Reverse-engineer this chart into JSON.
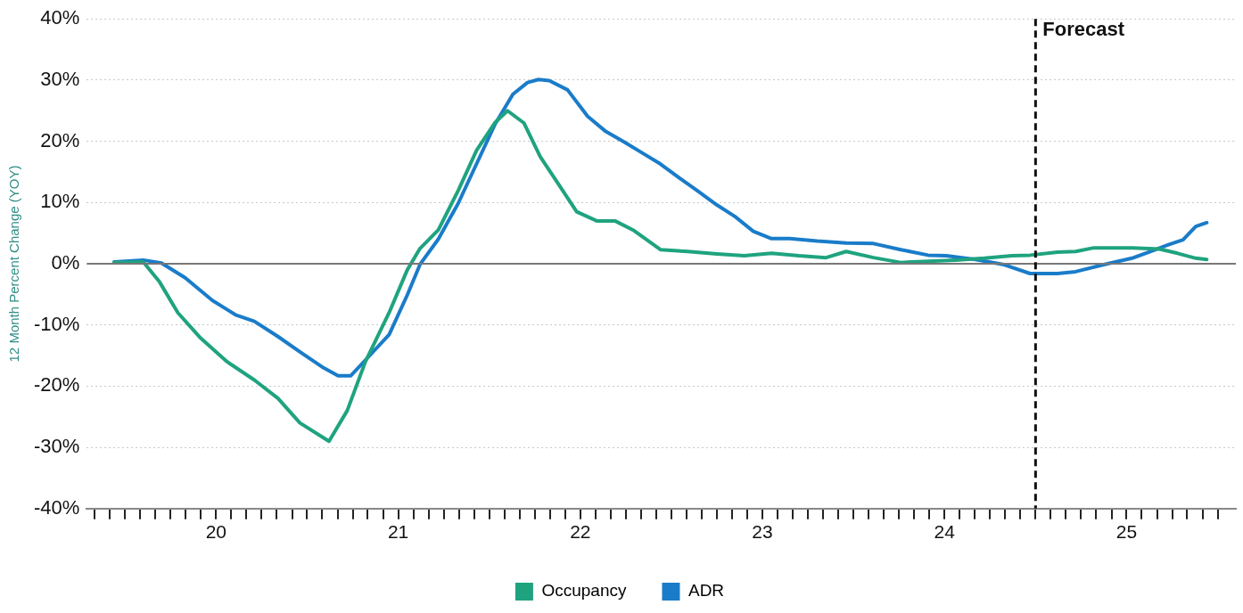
{
  "chart_data": {
    "type": "line",
    "ylabel": "12 Month Percent Change (YOY)",
    "ylim": [
      -40,
      40
    ],
    "yticks": [
      {
        "value": -40,
        "label": "-40%"
      },
      {
        "value": -30,
        "label": "-30%"
      },
      {
        "value": -20,
        "label": "-20%"
      },
      {
        "value": -10,
        "label": "-10%"
      },
      {
        "value": 0,
        "label": "0%"
      },
      {
        "value": 10,
        "label": "10%"
      },
      {
        "value": 20,
        "label": "20%"
      },
      {
        "value": 30,
        "label": "30%"
      },
      {
        "value": 40,
        "label": "40%"
      }
    ],
    "xlim": [
      19.29,
      25.6
    ],
    "xticks": [
      {
        "value": 19.333,
        "label": null
      },
      {
        "value": 19.417,
        "label": null
      },
      {
        "value": 19.5,
        "label": null
      },
      {
        "value": 19.583,
        "label": null
      },
      {
        "value": 19.667,
        "label": null
      },
      {
        "value": 19.75,
        "label": null
      },
      {
        "value": 19.833,
        "label": null
      },
      {
        "value": 19.917,
        "label": null
      },
      20,
      {
        "value": 20.083,
        "label": null
      },
      {
        "value": 20.167,
        "label": null
      },
      {
        "value": 20.25,
        "label": null
      },
      {
        "value": 20.333,
        "label": null
      },
      {
        "value": 20.417,
        "label": null
      },
      {
        "value": 20.5,
        "label": null
      },
      {
        "value": 20.583,
        "label": null
      },
      {
        "value": 20.667,
        "label": null
      },
      {
        "value": 20.75,
        "label": null
      },
      {
        "value": 20.833,
        "label": null
      },
      {
        "value": 20.917,
        "label": null
      },
      21,
      {
        "value": 21.083,
        "label": null
      },
      {
        "value": 21.167,
        "label": null
      },
      {
        "value": 21.25,
        "label": null
      },
      {
        "value": 21.333,
        "label": null
      },
      {
        "value": 21.417,
        "label": null
      },
      {
        "value": 21.5,
        "label": null
      },
      {
        "value": 21.583,
        "label": null
      },
      {
        "value": 21.667,
        "label": null
      },
      {
        "value": 21.75,
        "label": null
      },
      {
        "value": 21.833,
        "label": null
      },
      {
        "value": 21.917,
        "label": null
      },
      22,
      {
        "value": 22.083,
        "label": null
      },
      {
        "value": 22.167,
        "label": null
      },
      {
        "value": 22.25,
        "label": null
      },
      {
        "value": 22.333,
        "label": null
      },
      {
        "value": 22.417,
        "label": null
      },
      {
        "value": 22.5,
        "label": null
      },
      {
        "value": 22.583,
        "label": null
      },
      {
        "value": 22.667,
        "label": null
      },
      {
        "value": 22.75,
        "label": null
      },
      {
        "value": 22.833,
        "label": null
      },
      {
        "value": 22.917,
        "label": null
      },
      23,
      {
        "value": 23.083,
        "label": null
      },
      {
        "value": 23.167,
        "label": null
      },
      {
        "value": 23.25,
        "label": null
      },
      {
        "value": 23.333,
        "label": null
      },
      {
        "value": 23.417,
        "label": null
      },
      {
        "value": 23.5,
        "label": null
      },
      {
        "value": 23.583,
        "label": null
      },
      {
        "value": 23.667,
        "label": null
      },
      {
        "value": 23.75,
        "label": null
      },
      {
        "value": 23.833,
        "label": null
      },
      {
        "value": 23.917,
        "label": null
      },
      24,
      {
        "value": 24.083,
        "label": null
      },
      {
        "value": 24.167,
        "label": null
      },
      {
        "value": 24.25,
        "label": null
      },
      {
        "value": 24.333,
        "label": null
      },
      {
        "value": 24.417,
        "label": null
      },
      {
        "value": 24.5,
        "label": null
      },
      {
        "value": 24.583,
        "label": null
      },
      {
        "value": 24.667,
        "label": null
      },
      {
        "value": 24.75,
        "label": null
      },
      {
        "value": 24.833,
        "label": null
      },
      {
        "value": 24.917,
        "label": null
      },
      25,
      {
        "value": 25.083,
        "label": null
      },
      {
        "value": 25.167,
        "label": null
      },
      {
        "value": 25.25,
        "label": null
      },
      {
        "value": 25.333,
        "label": null
      },
      {
        "value": 25.417,
        "label": null
      },
      {
        "value": 25.5,
        "label": null
      }
    ],
    "grid": "y",
    "legend": "bottom",
    "marker": "none",
    "line_style": "solid",
    "ref_lines": [
      {
        "axis": "y",
        "value": 0,
        "color": "#777777",
        "line_style": "solid"
      },
      {
        "axis": "x",
        "value": 24.5,
        "label": "Forecast",
        "color": "#111111",
        "line_style": "dashed"
      }
    ],
    "series": [
      {
        "name": "Occupancy",
        "color": "#1fa37f",
        "x": [
          19.44,
          19.6,
          19.69,
          19.79,
          19.91,
          20.06,
          20.21,
          20.34,
          20.46,
          20.62,
          20.72,
          20.82,
          20.95,
          21.05,
          21.12,
          21.22,
          21.33,
          21.43,
          21.53,
          21.6,
          21.69,
          21.78,
          21.88,
          21.98,
          22.09,
          22.19,
          22.29,
          22.44,
          22.59,
          22.75,
          22.9,
          23.05,
          23.2,
          23.35,
          23.46,
          23.61,
          23.76,
          23.91,
          24.06,
          24.22,
          24.37,
          24.47,
          24.62,
          24.72,
          24.82,
          25.03,
          25.18,
          25.28,
          25.38,
          25.44
        ],
        "values": [
          0.2,
          0.3,
          -3,
          -8,
          -12,
          -16,
          -19,
          -22,
          -26,
          -29,
          -24,
          -16,
          -8,
          -1,
          2.5,
          5.5,
          12,
          18.5,
          23,
          25,
          23,
          17.5,
          13,
          8.5,
          7,
          7,
          5.5,
          2.3,
          2,
          1.6,
          1.3,
          1.7,
          1.3,
          1,
          2,
          1,
          0.2,
          0.4,
          0.6,
          0.9,
          1.3,
          1.4,
          1.9,
          2,
          2.6,
          2.6,
          2.4,
          1.7,
          0.9,
          0.7
        ]
      },
      {
        "name": "ADR",
        "color": "#1a7cc9",
        "x": [
          19.44,
          19.6,
          19.7,
          19.83,
          19.98,
          20.11,
          20.21,
          20.34,
          20.46,
          20.59,
          20.67,
          20.74,
          20.84,
          20.95,
          21.05,
          21.12,
          21.22,
          21.33,
          21.43,
          21.53,
          21.63,
          21.71,
          21.77,
          21.83,
          21.93,
          22.04,
          22.14,
          22.24,
          22.34,
          22.44,
          22.54,
          22.64,
          22.75,
          22.85,
          22.95,
          23.05,
          23.15,
          23.3,
          23.46,
          23.61,
          23.76,
          23.91,
          24.01,
          24.17,
          24.32,
          24.47,
          24.62,
          24.72,
          24.88,
          25.03,
          25.13,
          25.23,
          25.31,
          25.38,
          25.44
        ],
        "values": [
          0.3,
          0.6,
          0.1,
          -2.3,
          -6,
          -8.4,
          -9.4,
          -11.9,
          -14.4,
          -17,
          -18.3,
          -18.3,
          -15.1,
          -11.6,
          -5.1,
          -0.1,
          4,
          9.9,
          16.3,
          22.7,
          27.7,
          29.6,
          30.1,
          29.9,
          28.4,
          24.1,
          21.6,
          19.9,
          18.1,
          16.3,
          14.1,
          12,
          9.6,
          7.7,
          5.3,
          4.1,
          4.1,
          3.7,
          3.4,
          3.3,
          2.3,
          1.4,
          1.3,
          0.7,
          -0.1,
          -1.6,
          -1.6,
          -1.3,
          -0.1,
          0.9,
          2,
          3.1,
          3.9,
          6.1,
          6.7
        ]
      }
    ]
  }
}
